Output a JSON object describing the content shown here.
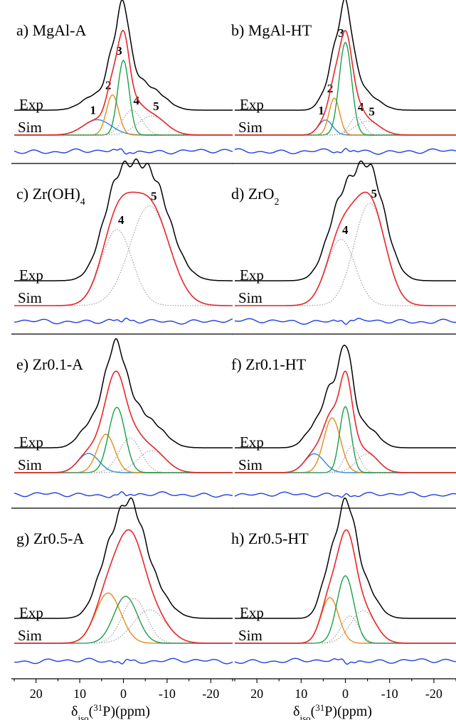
{
  "chart_data": {
    "type": "line",
    "x_axis": {
      "label_symbol": "δ",
      "label_subscript": "iso",
      "label_open": "(",
      "label_isotope": "31",
      "label_rest": "P)(ppm)",
      "xlim": [
        25,
        -25
      ],
      "reversed": true,
      "ticks": [
        20,
        10,
        0,
        -10,
        -20
      ],
      "tick_labels": [
        "20",
        "10",
        "0",
        "-10",
        "-20"
      ]
    },
    "curve_colors": {
      "exp": "#000000",
      "sim": "#e8262a",
      "residual": "#1f3fe0",
      "1": "#2a8ad8",
      "2": "#e88a1a",
      "3": "#1a9e4a",
      "4": "#a0a0a0",
      "5": "#a0a0a0"
    },
    "panels": [
      {
        "label": "a) MgAl-A",
        "exp_label": "Exp",
        "sim_label": "Sim",
        "components": [
          {
            "id": "1",
            "label": "1",
            "center": 6,
            "width": 3.2,
            "amp": 0.16
          },
          {
            "id": "2",
            "label": "2",
            "center": 2.5,
            "width": 1.4,
            "amp": 0.42
          },
          {
            "id": "3",
            "label": "3",
            "center": 0,
            "width": 1.3,
            "amp": 0.78
          },
          {
            "id": "4",
            "label": "4",
            "center": -2,
            "width": 2.2,
            "amp": 0.26
          },
          {
            "id": "5",
            "label": "5",
            "center": -6.5,
            "width": 3.2,
            "amp": 0.2
          }
        ]
      },
      {
        "label": "b) MgAl-HT",
        "exp_label": "Exp",
        "sim_label": "Sim",
        "components": [
          {
            "id": "1",
            "label": "1",
            "center": 4.5,
            "width": 1.6,
            "amp": 0.13
          },
          {
            "id": "2",
            "label": "2",
            "center": 2.5,
            "width": 1.2,
            "amp": 0.32
          },
          {
            "id": "3",
            "label": "3",
            "center": 0,
            "width": 1.4,
            "amp": 0.8
          },
          {
            "id": "4",
            "label": "4",
            "center": -2.5,
            "width": 1.5,
            "amp": 0.16
          },
          {
            "id": "5",
            "label": "5",
            "center": -5,
            "width": 2.8,
            "amp": 0.12
          }
        ]
      },
      {
        "label_main": "c) Zr(OH)",
        "label_sub": "4",
        "exp_label": "Exp",
        "sim_label": "Sim",
        "components": [
          {
            "id": "4",
            "label": "4",
            "center": 1.5,
            "width": 3.5,
            "amp": 0.55
          },
          {
            "id": "5",
            "label": "5",
            "center": -6,
            "width": 4.5,
            "amp": 0.72
          }
        ]
      },
      {
        "label_main": "d) ZrO",
        "label_sub": "2",
        "exp_label": "Exp",
        "sim_label": "Sim",
        "components": [
          {
            "id": "4",
            "label": "4",
            "center": 1,
            "width": 3.2,
            "amp": 0.55
          },
          {
            "id": "5",
            "label": "5",
            "center": -5.5,
            "width": 3.5,
            "amp": 0.85
          }
        ]
      },
      {
        "label": "e) Zr0.1-A",
        "exp_label": "Exp",
        "sim_label": "Sim",
        "components": [
          {
            "id": "1",
            "label": "",
            "center": 8,
            "width": 2.4,
            "amp": 0.2
          },
          {
            "id": "2",
            "label": "",
            "center": 4,
            "width": 2.0,
            "amp": 0.4
          },
          {
            "id": "3",
            "label": "",
            "center": 1.5,
            "width": 1.9,
            "amp": 0.68
          },
          {
            "id": "4",
            "label": "",
            "center": -1.5,
            "width": 2.5,
            "amp": 0.36
          },
          {
            "id": "5",
            "label": "",
            "center": -6.5,
            "width": 3.2,
            "amp": 0.23
          }
        ]
      },
      {
        "label": "f) Zr0.1-HT",
        "exp_label": "Exp",
        "sim_label": "Sim",
        "components": [
          {
            "id": "1",
            "label": "",
            "center": 7,
            "width": 2.2,
            "amp": 0.2
          },
          {
            "id": "2",
            "label": "",
            "center": 3,
            "width": 1.9,
            "amp": 0.58
          },
          {
            "id": "3",
            "label": "",
            "center": 0,
            "width": 1.3,
            "amp": 0.7
          },
          {
            "id": "4",
            "label": "",
            "center": -1.5,
            "width": 1.6,
            "amp": 0.28
          },
          {
            "id": "5",
            "label": "",
            "center": -5,
            "width": 2.5,
            "amp": 0.2
          }
        ]
      },
      {
        "label": "g) Zr0.5-A",
        "exp_label": "Exp",
        "sim_label": "Sim",
        "components": [
          {
            "id": "2",
            "label": "",
            "center": 3.5,
            "width": 2.9,
            "amp": 0.45
          },
          {
            "id": "3",
            "label": "",
            "center": -0.5,
            "width": 2.7,
            "amp": 0.42
          },
          {
            "id": "4",
            "label": "",
            "center": -2.5,
            "width": 2.8,
            "amp": 0.4
          },
          {
            "id": "5",
            "label": "",
            "center": -6,
            "width": 3.7,
            "amp": 0.3
          }
        ]
      },
      {
        "label": "h) Zr0.5-HT",
        "exp_label": "Exp",
        "sim_label": "Sim",
        "components": [
          {
            "id": "2",
            "label": "",
            "center": 3.5,
            "width": 2.0,
            "amp": 0.42
          },
          {
            "id": "3",
            "label": "",
            "center": 0,
            "width": 1.9,
            "amp": 0.62
          },
          {
            "id": "4",
            "label": "",
            "center": -1,
            "width": 2.0,
            "amp": 0.25
          },
          {
            "id": "5",
            "label": "",
            "center": -4,
            "width": 2.8,
            "amp": 0.3
          }
        ]
      }
    ]
  }
}
